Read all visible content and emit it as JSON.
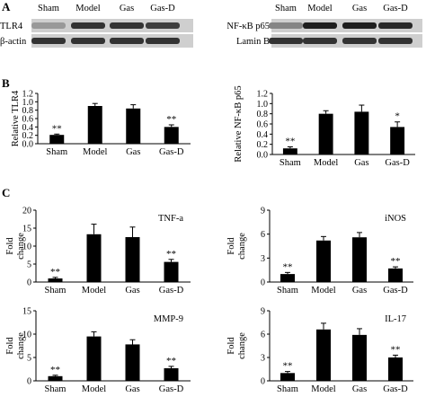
{
  "figure": {
    "panel_labels": {
      "a": "A",
      "b": "B",
      "c": "C"
    },
    "blot_lanes": [
      "Sham",
      "Model",
      "Gas",
      "Gas-D"
    ],
    "blots": [
      {
        "rows": [
          {
            "label": "TLR4",
            "intensity": [
              0.35,
              0.85,
              0.85,
              0.8
            ]
          },
          {
            "label": "β-actin",
            "intensity": [
              0.85,
              0.85,
              0.85,
              0.85
            ]
          }
        ]
      },
      {
        "rows": [
          {
            "label": "NF-κB p65",
            "intensity": [
              0.45,
              0.95,
              0.95,
              0.9
            ]
          },
          {
            "label": "Lamin B",
            "intensity": [
              0.85,
              0.85,
              0.85,
              0.85
            ]
          }
        ]
      }
    ]
  },
  "chart_data": [
    {
      "id": "tlr4",
      "type": "bar",
      "categories": [
        "Sham",
        "Model",
        "Gas",
        "Gas-D"
      ],
      "values": [
        0.21,
        0.9,
        0.84,
        0.4
      ],
      "errors": [
        0.02,
        0.06,
        0.09,
        0.05
      ],
      "stars": [
        "**",
        "",
        "",
        "**"
      ],
      "ylim": [
        0,
        1.2
      ],
      "yticks": [
        "0.0",
        "0.2",
        "0.4",
        "0.6",
        "0.8",
        "1.0",
        "1.2"
      ],
      "ylabel": [
        "Relative TLR4"
      ],
      "label": ""
    },
    {
      "id": "nfkb",
      "type": "bar",
      "categories": [
        "Sham",
        "Model",
        "Gas",
        "Gas-D"
      ],
      "values": [
        0.12,
        0.8,
        0.84,
        0.54
      ],
      "errors": [
        0.03,
        0.06,
        0.13,
        0.1
      ],
      "stars": [
        "**",
        "",
        "",
        "*"
      ],
      "ylim": [
        0,
        1.2
      ],
      "yticks": [
        "0.0",
        "0.2",
        "0.4",
        "0.6",
        "0.8",
        "1.0",
        "1.2"
      ],
      "ylabel": [
        "Relative NF-κB p65"
      ],
      "label": ""
    },
    {
      "id": "tnfa",
      "type": "bar",
      "categories": [
        "Sham",
        "Model",
        "Gas",
        "Gas-D"
      ],
      "values": [
        1.0,
        13.3,
        12.5,
        5.6
      ],
      "errors": [
        0.3,
        2.8,
        2.8,
        0.7
      ],
      "stars": [
        "**",
        "",
        "",
        "**"
      ],
      "ylim": [
        0,
        20
      ],
      "yticks": [
        "0",
        "5",
        "10",
        "15",
        "20"
      ],
      "ylabel": [
        "Fold",
        "change"
      ],
      "label": "TNF-a"
    },
    {
      "id": "inos",
      "type": "bar",
      "categories": [
        "Sham",
        "Model",
        "Gas",
        "Gas-D"
      ],
      "values": [
        1.0,
        5.2,
        5.6,
        1.7
      ],
      "errors": [
        0.2,
        0.5,
        0.6,
        0.2
      ],
      "stars": [
        "**",
        "",
        "",
        "**"
      ],
      "ylim": [
        0,
        9
      ],
      "yticks": [
        "0",
        "3",
        "6",
        "9"
      ],
      "ylabel": [
        "Fold",
        "change"
      ],
      "label": "iNOS"
    },
    {
      "id": "mmp9",
      "type": "bar",
      "categories": [
        "Sham",
        "Model",
        "Gas",
        "Gas-D"
      ],
      "values": [
        1.0,
        9.5,
        7.8,
        2.7
      ],
      "errors": [
        0.2,
        1.0,
        1.0,
        0.4
      ],
      "stars": [
        "**",
        "",
        "",
        "**"
      ],
      "ylim": [
        0,
        15
      ],
      "yticks": [
        "0",
        "5",
        "10",
        "15"
      ],
      "ylabel": [
        "Fold",
        "change"
      ],
      "label": "MMP-9"
    },
    {
      "id": "il17",
      "type": "bar",
      "categories": [
        "Sham",
        "Model",
        "Gas",
        "Gas-D"
      ],
      "values": [
        1.0,
        6.6,
        5.9,
        3.0
      ],
      "errors": [
        0.2,
        0.8,
        0.8,
        0.3
      ],
      "stars": [
        "**",
        "",
        "",
        "**"
      ],
      "ylim": [
        0,
        9
      ],
      "yticks": [
        "0",
        "3",
        "6",
        "9"
      ],
      "ylabel": [
        "Fold",
        "change"
      ],
      "label": "IL-17"
    }
  ]
}
